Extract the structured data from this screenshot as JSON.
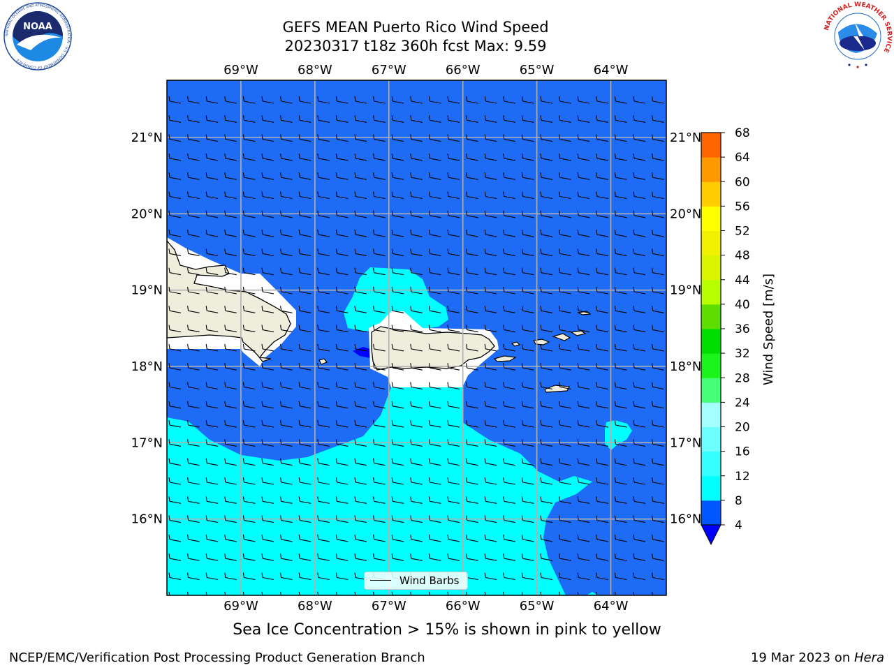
{
  "figure": {
    "title_line1": "GEFS MEAN Puerto Rico Wind Speed",
    "title_line2": "20230317 t18z 360h fcst   Max: 9.59",
    "ice_note": "Sea Ice Concentration > 15% is shown in pink to yellow",
    "footer_left": "NCEP/EMC/Verification Post Processing Product Generation Branch",
    "footer_right_date": "19 Mar 2023 on ",
    "footer_right_host": "Hera",
    "legend_label": "Wind Barbs"
  },
  "logos": {
    "noaa_text": "NOAA",
    "noaa_ring": "NATIONAL OCEANIC AND ATMOSPHERIC ADMINISTRATION · U.S. DEPARTMENT OF COMMERCE",
    "nws_ring": "NATIONAL WEATHER SERVICE"
  },
  "axes": {
    "lon_labels": [
      "69°W",
      "68°W",
      "67°W",
      "66°W",
      "65°W",
      "64°W"
    ],
    "lat_labels": [
      "21°N",
      "20°N",
      "19°N",
      "18°N",
      "17°N",
      "16°N"
    ]
  },
  "colorbar": {
    "label": "Wind Speed [m/s]",
    "ticks": [
      "4",
      "8",
      "12",
      "16",
      "20",
      "24",
      "28",
      "32",
      "36",
      "40",
      "44",
      "48",
      "52",
      "56",
      "60",
      "64",
      "68"
    ],
    "colors": [
      "#0057ff",
      "#00ffff",
      "#36ffff",
      "#6dffff",
      "#a4ffff",
      "#45ff7a",
      "#1cf51c",
      "#00dd00",
      "#5edd00",
      "#b8ff00",
      "#d9f500",
      "#f0f000",
      "#ffff00",
      "#ffcc00",
      "#ff9900",
      "#ff6600",
      "#ff2200",
      "#ff0000"
    ],
    "under_color": "#0000ff"
  },
  "map_colors": {
    "ocean_4_8": "#1e6cf5",
    "ocean_8_12": "#00ffff",
    "land": "#efeedd",
    "white_area": "#ffffff",
    "grid": "#b0b0b0"
  },
  "chart_data": {
    "type": "heatmap",
    "title": "GEFS MEAN Puerto Rico Wind Speed",
    "subtitle": "20230317 t18z 360h fcst   Max: 9.59",
    "variable": "Wind Speed [m/s]",
    "max_value": 9.59,
    "lon_range": [
      -70,
      -63.25
    ],
    "lat_range": [
      15,
      21.75
    ],
    "contour_levels": [
      4,
      8,
      12,
      16,
      20,
      24,
      28,
      32,
      36,
      40,
      44,
      48,
      52,
      56,
      60,
      64,
      68
    ],
    "regions": [
      {
        "band": "4-8",
        "where": "northern and eastern waters (most of domain)"
      },
      {
        "band": "8-12",
        "where": "Caribbean south of Hispaniola/Puerto Rico, Mona Passage north of PR, patch near 64.2°W 17.1°N"
      },
      {
        "band": "<4",
        "where": "small area west of Puerto Rico near 67.3°W 18.2°N"
      }
    ],
    "wind_barbs": "easterly winds across the domain",
    "legend": "Wind Barbs"
  }
}
